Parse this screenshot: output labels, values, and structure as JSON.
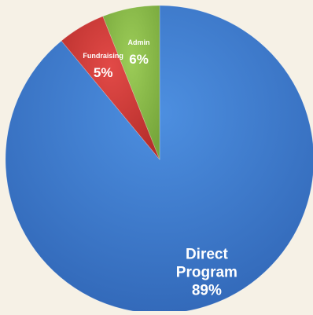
{
  "chart_data": {
    "type": "pie",
    "categories": [
      "Direct Program",
      "Fundraising",
      "Admin"
    ],
    "values": [
      89,
      5,
      6
    ],
    "value_labels": [
      "89%",
      "5%",
      "6%"
    ],
    "slice_label_lines": [
      [
        "Direct",
        "Program",
        "89%"
      ],
      [
        "Fundraising",
        "5%"
      ],
      [
        "Admin",
        "6%"
      ]
    ],
    "colors": [
      "#3f7fd0",
      "#d23b39",
      "#8ab84a"
    ],
    "start_angle_deg": 0,
    "direction": "clockwise_from_top",
    "legend": "none"
  },
  "page": {
    "background": "#f6f1e6"
  }
}
